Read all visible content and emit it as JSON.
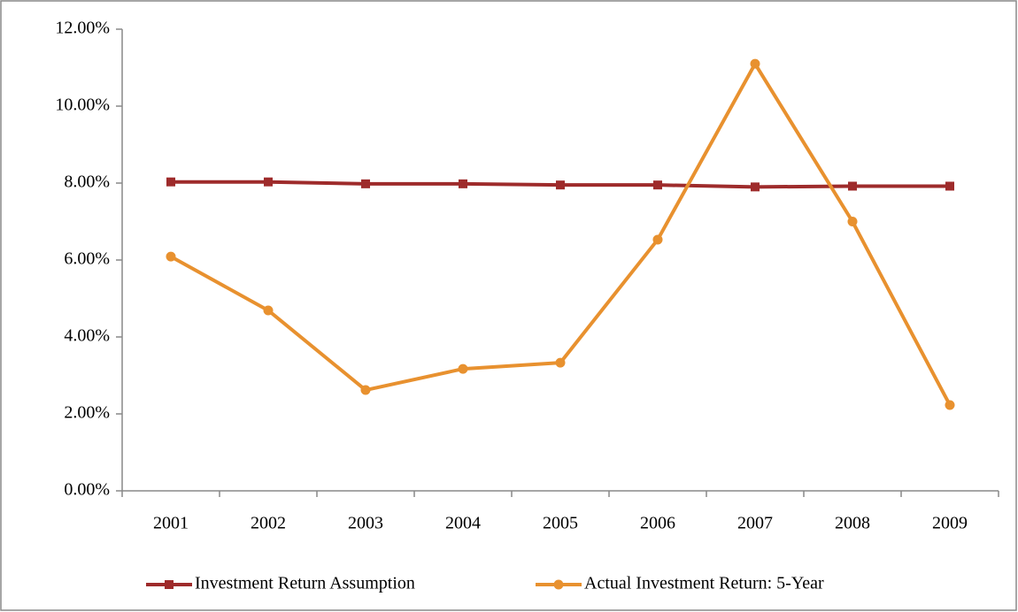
{
  "chart_data": {
    "type": "line",
    "categories": [
      "2001",
      "2002",
      "2003",
      "2004",
      "2005",
      "2006",
      "2007",
      "2008",
      "2009"
    ],
    "series": [
      {
        "name": "Investment Return Assumption",
        "color": "#9e2b2b",
        "marker": "square",
        "values": [
          8.03,
          8.03,
          7.98,
          7.98,
          7.95,
          7.95,
          7.9,
          7.92,
          7.92
        ]
      },
      {
        "name": "Actual Investment Return: 5-Year",
        "color": "#e8912f",
        "marker": "circle",
        "values": [
          6.09,
          4.69,
          2.62,
          3.17,
          3.33,
          6.53,
          11.1,
          7.0,
          2.23
        ]
      }
    ],
    "ylim": [
      0,
      12
    ],
    "yticks": [
      {
        "value": 0,
        "label": "0.00%"
      },
      {
        "value": 2,
        "label": "2.00%"
      },
      {
        "value": 4,
        "label": "4.00%"
      },
      {
        "value": 6,
        "label": "6.00%"
      },
      {
        "value": 8,
        "label": "8.00%"
      },
      {
        "value": 10,
        "label": "10.00%"
      },
      {
        "value": 12,
        "label": "12.00%"
      }
    ],
    "legend": "bottom",
    "grid": false
  }
}
